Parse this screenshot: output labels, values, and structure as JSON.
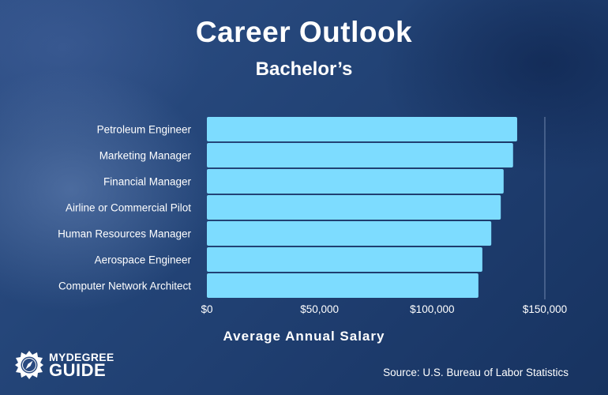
{
  "colors": {
    "bar": "#7ddcff",
    "gridline": "#6f86ad"
  },
  "logo": {
    "line1": "MYDEGREE",
    "line2": "GUIDE",
    "icon": "compass-badge-icon"
  },
  "source": "Source: U.S. Bureau of Labor Statistics",
  "chart_data": {
    "type": "bar",
    "orientation": "horizontal",
    "title": "Career Outlook",
    "subtitle": "Bachelor’s",
    "xlabel": "Average Annual Salary",
    "ylabel": "",
    "categories": [
      "Petroleum Engineer",
      "Marketing Manager",
      "Financial Manager",
      "Airline or Commercial Pilot",
      "Human Resources Manager",
      "Aerospace Engineer",
      "Computer Network Architect"
    ],
    "values": [
      137720,
      135900,
      131710,
      130440,
      126230,
      122270,
      120520
    ],
    "xlim": [
      0,
      150000
    ],
    "x_ticks": [
      0,
      50000,
      100000,
      150000
    ],
    "x_tick_labels": [
      "$0",
      "$50,000",
      "$100,000",
      "$150,000"
    ],
    "grid": false,
    "legend": "none"
  }
}
